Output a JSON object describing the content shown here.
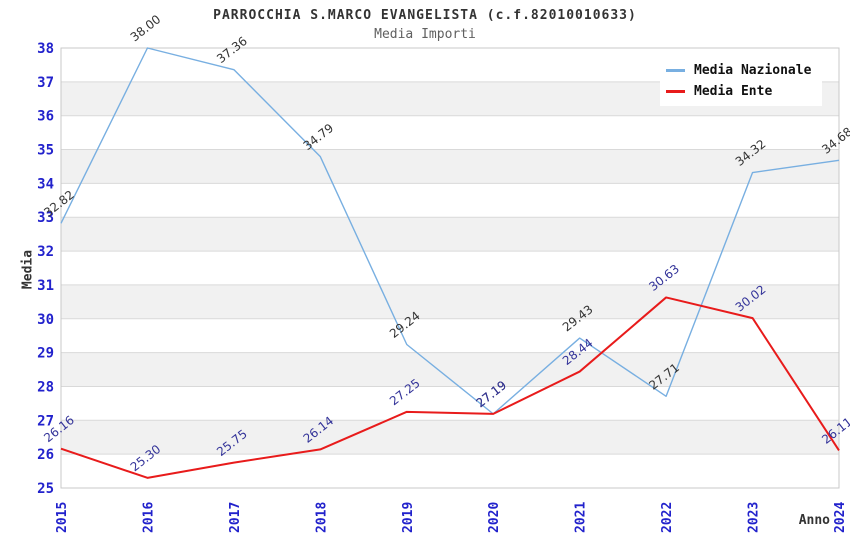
{
  "title": "PARROCCHIA S.MARCO EVANGELISTA (c.f.82010010633)",
  "subtitle": "Media Importi",
  "chart_data": {
    "type": "line",
    "categories": [
      "2015",
      "2016",
      "2017",
      "2018",
      "2019",
      "2020",
      "2021",
      "2022",
      "2023",
      "2024"
    ],
    "series": [
      {
        "name": "Media Nazionale",
        "color": "#78afe1",
        "label_color": "#333333",
        "line_width": 1.4,
        "values": [
          32.82,
          38.0,
          37.36,
          34.79,
          29.24,
          27.19,
          29.43,
          27.71,
          34.32,
          34.68
        ],
        "labels": [
          "32.82",
          "38.00",
          "37.36",
          "34.79",
          "29.24",
          "27.19",
          "29.43",
          "27.71",
          "34.32",
          "34.68"
        ]
      },
      {
        "name": "Media Ente",
        "color": "#e81b1b",
        "label_color": "#333399",
        "line_width": 2,
        "values": [
          26.16,
          25.3,
          25.75,
          26.14,
          27.25,
          27.19,
          28.44,
          30.63,
          30.02,
          26.11
        ],
        "labels": [
          "26.16",
          "25.30",
          "25.75",
          "26.14",
          "27.25",
          "27.19",
          "28.44",
          "30.63",
          "30.02",
          "26.11"
        ]
      }
    ],
    "xlabel": "Anno",
    "ylabel": "Media",
    "ylim": [
      25,
      38
    ],
    "y_ticks": [
      25,
      26,
      27,
      28,
      29,
      30,
      31,
      32,
      33,
      34,
      35,
      36,
      37,
      38
    ],
    "grid": true,
    "legend_position": "top-right",
    "colors": {
      "tick_label": "#2222cc",
      "gridline": "#d9d9d9",
      "frame": "#c9c9c9",
      "band": "#f1f1f1",
      "background": "#ffffff"
    }
  }
}
